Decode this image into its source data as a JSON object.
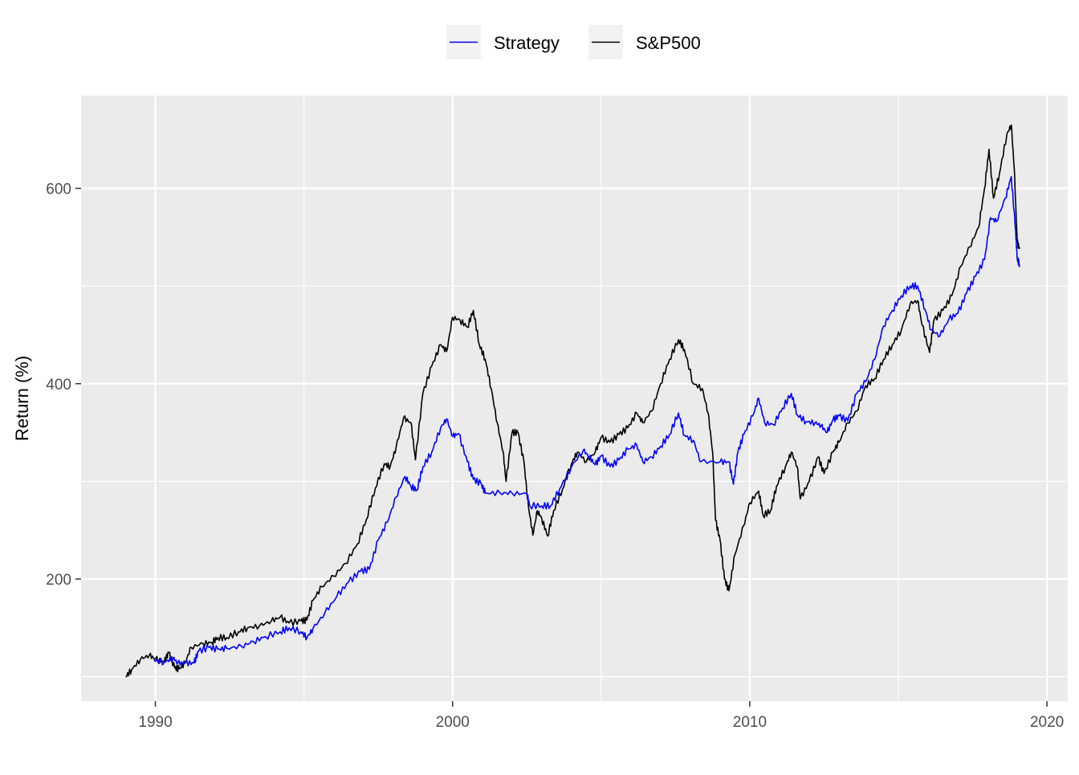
{
  "chart_data": {
    "type": "line",
    "title": "",
    "xlabel": "",
    "ylabel": "Return (%)",
    "xlim": [
      1987.5,
      2020.7
    ],
    "ylim": [
      75,
      695
    ],
    "x_ticks": [
      1990,
      2000,
      2010,
      2020
    ],
    "y_ticks": [
      200,
      400,
      600
    ],
    "y_minor": [
      100,
      300,
      500
    ],
    "x_minor": [
      1995,
      2005,
      2015
    ],
    "grid": true,
    "legend_position": "top",
    "background": "#ebebeb",
    "series": [
      {
        "name": "Strategy",
        "color": "#0000ff",
        "points": [
          [
            1989.95,
            117
          ],
          [
            1990.3,
            115
          ],
          [
            1990.6,
            119
          ],
          [
            1990.75,
            114
          ],
          [
            1991.0,
            114
          ],
          [
            1991.3,
            114
          ],
          [
            1991.45,
            126
          ],
          [
            1991.8,
            130
          ],
          [
            1992.1,
            128
          ],
          [
            1992.4,
            129
          ],
          [
            1992.9,
            131
          ],
          [
            1993.3,
            136
          ],
          [
            1993.7,
            141
          ],
          [
            1994.2,
            146
          ],
          [
            1994.5,
            150
          ],
          [
            1994.9,
            146
          ],
          [
            1995.1,
            140
          ],
          [
            1995.3,
            149
          ],
          [
            1995.7,
            165
          ],
          [
            1996.1,
            182
          ],
          [
            1996.5,
            197
          ],
          [
            1996.9,
            208
          ],
          [
            1997.2,
            210
          ],
          [
            1997.5,
            240
          ],
          [
            1997.8,
            258
          ],
          [
            1998.1,
            284
          ],
          [
            1998.4,
            305
          ],
          [
            1998.6,
            295
          ],
          [
            1998.8,
            291
          ],
          [
            1999.0,
            315
          ],
          [
            1999.3,
            330
          ],
          [
            1999.6,
            355
          ],
          [
            1999.8,
            364
          ],
          [
            2000.0,
            346
          ],
          [
            2000.2,
            349
          ],
          [
            2000.5,
            320
          ],
          [
            2000.7,
            302
          ],
          [
            2000.95,
            298
          ],
          [
            2001.1,
            288
          ],
          [
            2001.6,
            288
          ],
          [
            2002.0,
            288
          ],
          [
            2002.5,
            287
          ],
          [
            2002.6,
            275
          ],
          [
            2003.0,
            275
          ],
          [
            2003.3,
            275
          ],
          [
            2003.6,
            292
          ],
          [
            2004.0,
            315
          ],
          [
            2004.4,
            332
          ],
          [
            2004.6,
            325
          ],
          [
            2004.8,
            317
          ],
          [
            2005.0,
            326
          ],
          [
            2005.3,
            315
          ],
          [
            2005.6,
            322
          ],
          [
            2005.9,
            333
          ],
          [
            2006.2,
            337
          ],
          [
            2006.4,
            320
          ],
          [
            2006.7,
            325
          ],
          [
            2007.0,
            336
          ],
          [
            2007.3,
            348
          ],
          [
            2007.6,
            370
          ],
          [
            2007.8,
            347
          ],
          [
            2008.1,
            342
          ],
          [
            2008.35,
            320
          ],
          [
            2009.0,
            320
          ],
          [
            2009.3,
            320
          ],
          [
            2009.45,
            297
          ],
          [
            2009.6,
            330
          ],
          [
            2009.8,
            348
          ],
          [
            2010.1,
            367
          ],
          [
            2010.3,
            385
          ],
          [
            2010.5,
            360
          ],
          [
            2010.8,
            358
          ],
          [
            2011.1,
            375
          ],
          [
            2011.4,
            390
          ],
          [
            2011.6,
            368
          ],
          [
            2011.9,
            361
          ],
          [
            2012.2,
            360
          ],
          [
            2012.4,
            357
          ],
          [
            2012.6,
            350
          ],
          [
            2012.8,
            363
          ],
          [
            2013.0,
            367
          ],
          [
            2013.3,
            362
          ],
          [
            2013.6,
            390
          ],
          [
            2013.9,
            402
          ],
          [
            2014.2,
            425
          ],
          [
            2014.5,
            459
          ],
          [
            2014.8,
            475
          ],
          [
            2015.1,
            490
          ],
          [
            2015.4,
            500
          ],
          [
            2015.65,
            500
          ],
          [
            2015.9,
            476
          ],
          [
            2016.1,
            455
          ],
          [
            2016.4,
            449
          ],
          [
            2016.7,
            466
          ],
          [
            2017.0,
            472
          ],
          [
            2017.3,
            493
          ],
          [
            2017.6,
            510
          ],
          [
            2017.9,
            527
          ],
          [
            2018.1,
            570
          ],
          [
            2018.3,
            566
          ],
          [
            2018.6,
            590
          ],
          [
            2018.8,
            612
          ],
          [
            2018.95,
            555
          ],
          [
            2019.0,
            528
          ],
          [
            2019.08,
            522
          ]
        ]
      },
      {
        "name": "S&P500",
        "color": "#000000",
        "points": [
          [
            1989.0,
            100
          ],
          [
            1989.2,
            107
          ],
          [
            1989.5,
            118
          ],
          [
            1989.8,
            122
          ],
          [
            1990.0,
            118
          ],
          [
            1990.3,
            115
          ],
          [
            1990.45,
            125
          ],
          [
            1990.65,
            109
          ],
          [
            1990.8,
            108
          ],
          [
            1991.0,
            114
          ],
          [
            1991.2,
            130
          ],
          [
            1991.6,
            134
          ],
          [
            1991.9,
            135
          ],
          [
            1992.1,
            140
          ],
          [
            1992.4,
            140
          ],
          [
            1992.8,
            146
          ],
          [
            1993.1,
            150
          ],
          [
            1993.5,
            152
          ],
          [
            1993.9,
            157
          ],
          [
            1994.2,
            161
          ],
          [
            1994.5,
            155
          ],
          [
            1994.9,
            157
          ],
          [
            1995.1,
            158
          ],
          [
            1995.3,
            178
          ],
          [
            1995.6,
            192
          ],
          [
            1996.0,
            203
          ],
          [
            1996.4,
            216
          ],
          [
            1996.8,
            236
          ],
          [
            1997.1,
            261
          ],
          [
            1997.4,
            293
          ],
          [
            1997.7,
            318
          ],
          [
            1997.9,
            315
          ],
          [
            1998.1,
            335
          ],
          [
            1998.35,
            365
          ],
          [
            1998.6,
            360
          ],
          [
            1998.75,
            322
          ],
          [
            1999.0,
            390
          ],
          [
            1999.3,
            418
          ],
          [
            1999.6,
            440
          ],
          [
            1999.8,
            433
          ],
          [
            2000.0,
            468
          ],
          [
            2000.25,
            465
          ],
          [
            2000.5,
            458
          ],
          [
            2000.7,
            475
          ],
          [
            2000.9,
            440
          ],
          [
            2001.1,
            425
          ],
          [
            2001.3,
            395
          ],
          [
            2001.5,
            360
          ],
          [
            2001.7,
            330
          ],
          [
            2001.8,
            300
          ],
          [
            2002.0,
            350
          ],
          [
            2002.2,
            350
          ],
          [
            2002.4,
            320
          ],
          [
            2002.55,
            275
          ],
          [
            2002.7,
            245
          ],
          [
            2002.85,
            270
          ],
          [
            2003.0,
            262
          ],
          [
            2003.2,
            244
          ],
          [
            2003.4,
            270
          ],
          [
            2003.7,
            292
          ],
          [
            2004.0,
            318
          ],
          [
            2004.2,
            330
          ],
          [
            2004.5,
            320
          ],
          [
            2004.8,
            330
          ],
          [
            2005.0,
            345
          ],
          [
            2005.3,
            340
          ],
          [
            2005.6,
            348
          ],
          [
            2005.9,
            355
          ],
          [
            2006.2,
            370
          ],
          [
            2006.4,
            360
          ],
          [
            2006.7,
            372
          ],
          [
            2007.0,
            400
          ],
          [
            2007.3,
            425
          ],
          [
            2007.6,
            445
          ],
          [
            2007.8,
            435
          ],
          [
            2008.1,
            400
          ],
          [
            2008.4,
            395
          ],
          [
            2008.6,
            370
          ],
          [
            2008.75,
            330
          ],
          [
            2008.85,
            260
          ],
          [
            2009.0,
            240
          ],
          [
            2009.15,
            200
          ],
          [
            2009.3,
            188
          ],
          [
            2009.5,
            225
          ],
          [
            2009.8,
            255
          ],
          [
            2010.0,
            278
          ],
          [
            2010.3,
            290
          ],
          [
            2010.45,
            265
          ],
          [
            2010.7,
            270
          ],
          [
            2010.9,
            295
          ],
          [
            2011.2,
            315
          ],
          [
            2011.4,
            330
          ],
          [
            2011.6,
            315
          ],
          [
            2011.7,
            282
          ],
          [
            2012.0,
            300
          ],
          [
            2012.3,
            325
          ],
          [
            2012.5,
            308
          ],
          [
            2012.8,
            330
          ],
          [
            2013.0,
            340
          ],
          [
            2013.3,
            360
          ],
          [
            2013.6,
            372
          ],
          [
            2013.9,
            398
          ],
          [
            2014.2,
            405
          ],
          [
            2014.5,
            425
          ],
          [
            2014.8,
            440
          ],
          [
            2015.1,
            455
          ],
          [
            2015.4,
            482
          ],
          [
            2015.65,
            485
          ],
          [
            2015.8,
            460
          ],
          [
            2016.05,
            432
          ],
          [
            2016.2,
            465
          ],
          [
            2016.5,
            475
          ],
          [
            2016.8,
            490
          ],
          [
            2017.1,
            520
          ],
          [
            2017.4,
            540
          ],
          [
            2017.7,
            560
          ],
          [
            2017.9,
            600
          ],
          [
            2018.05,
            640
          ],
          [
            2018.2,
            590
          ],
          [
            2018.4,
            615
          ],
          [
            2018.65,
            655
          ],
          [
            2018.8,
            665
          ],
          [
            2018.9,
            620
          ],
          [
            2019.0,
            545
          ],
          [
            2019.08,
            538
          ]
        ]
      }
    ]
  }
}
